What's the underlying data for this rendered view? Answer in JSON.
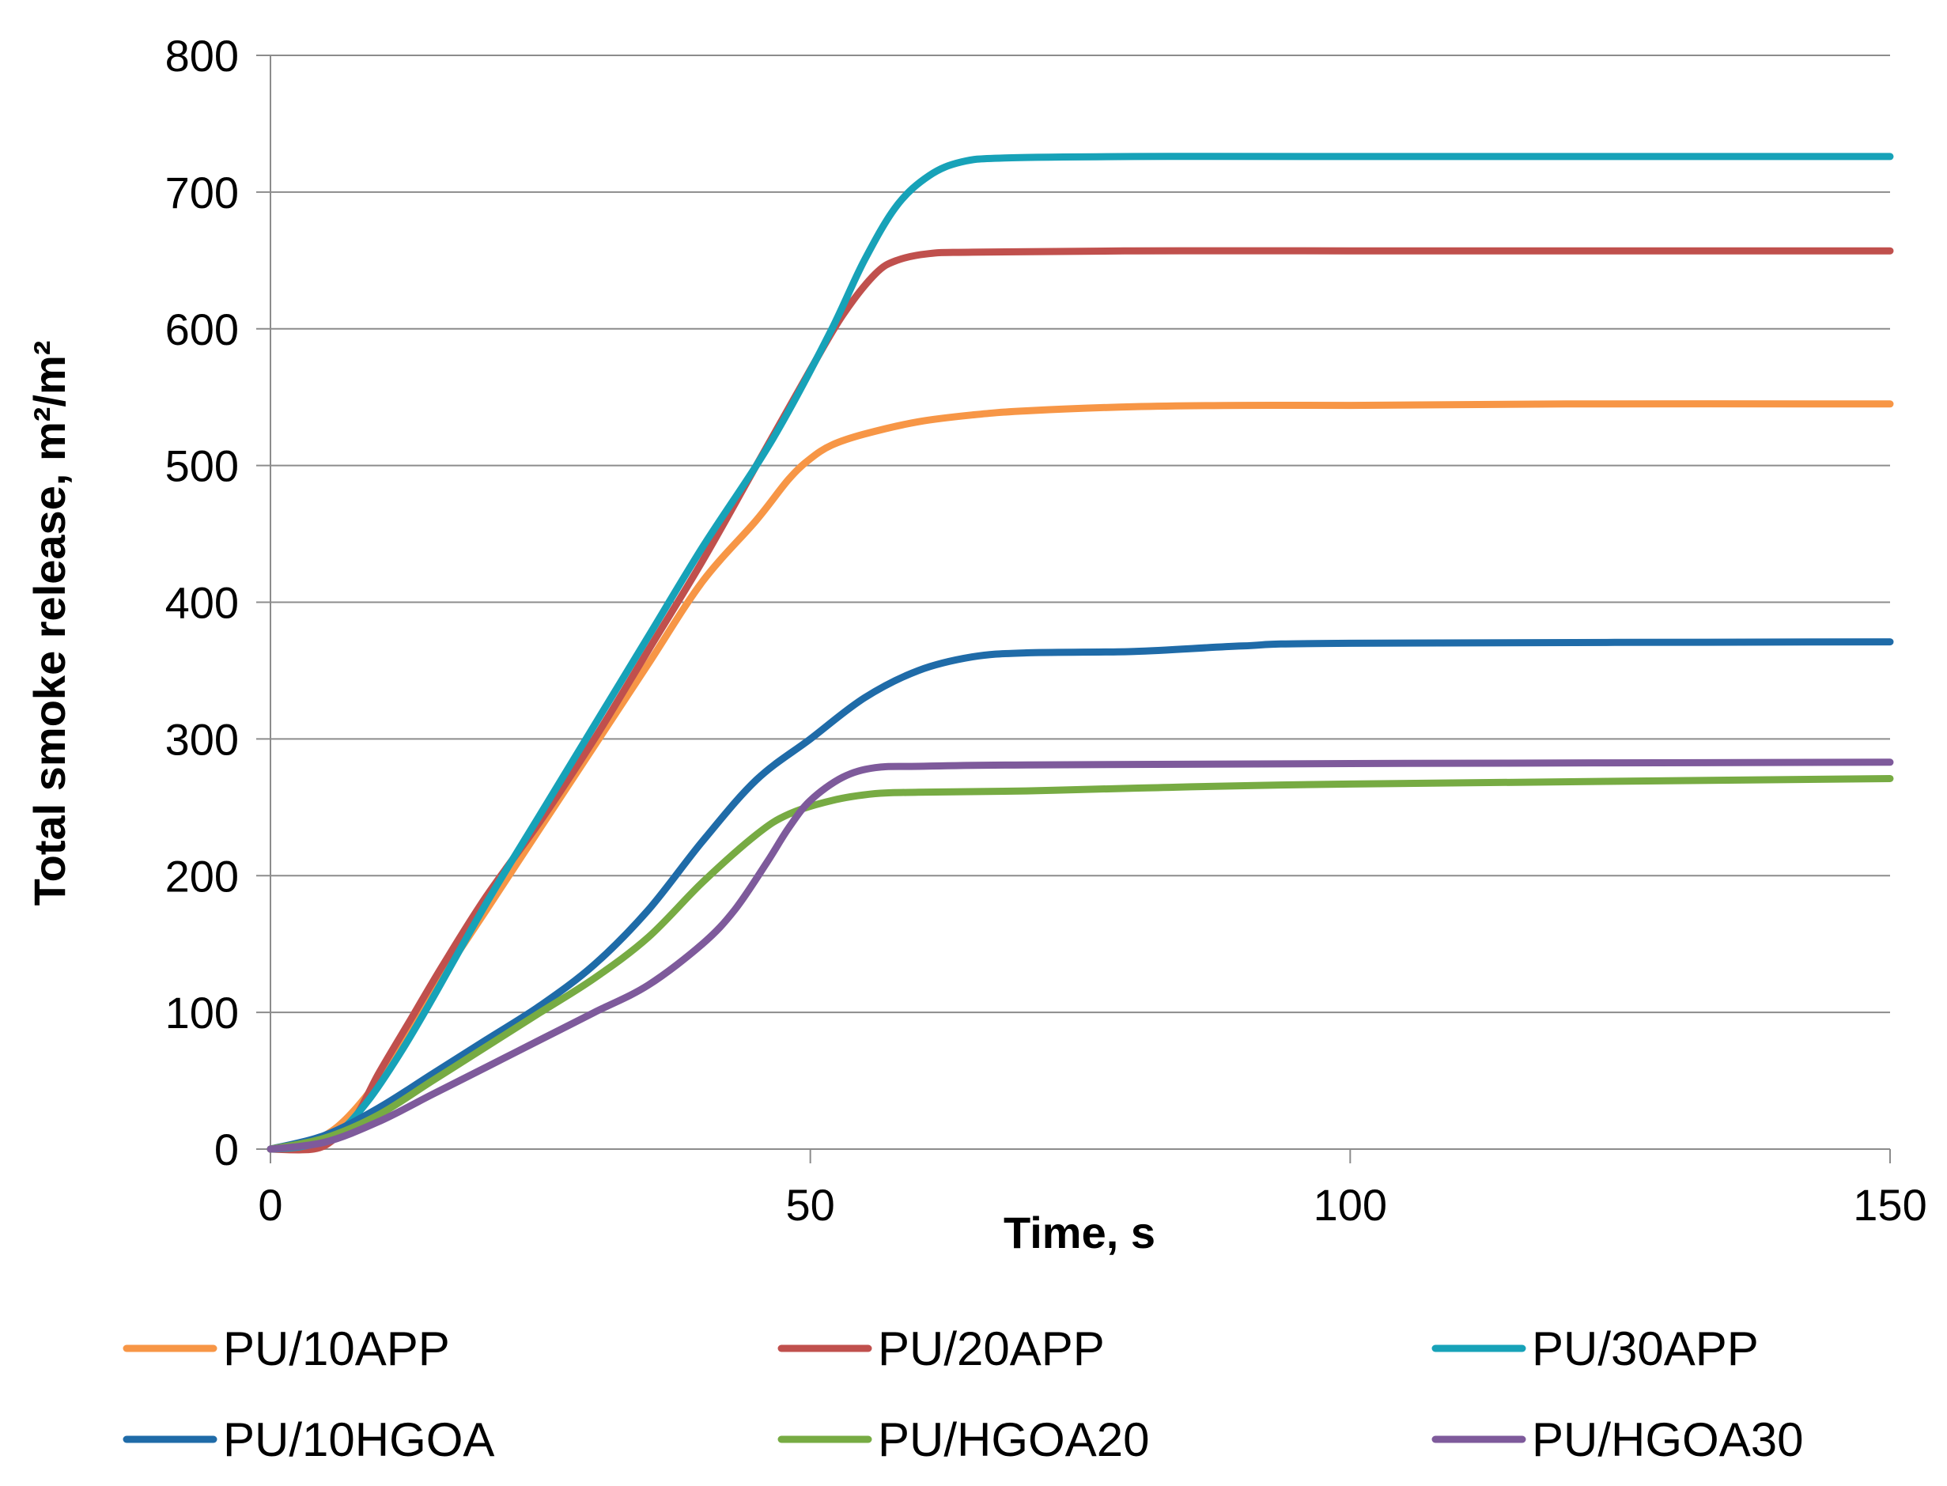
{
  "chart_data": {
    "type": "line",
    "title": "",
    "xlabel": "Time, s",
    "ylabel": "Total smoke release, m²/m²",
    "xlim": [
      0,
      150
    ],
    "ylim": [
      0,
      800
    ],
    "xticks": [
      "0",
      "50",
      "100",
      "150"
    ],
    "yticks": [
      "0",
      "100",
      "200",
      "300",
      "400",
      "500",
      "600",
      "700",
      "800"
    ],
    "grid": "horizontal",
    "legend": "bottom",
    "series": [
      {
        "name": "PU/10APP",
        "color": "#F79646",
        "points": [
          [
            0,
            0
          ],
          [
            3,
            3
          ],
          [
            6,
            15
          ],
          [
            9,
            40
          ],
          [
            12,
            75
          ],
          [
            15,
            115
          ],
          [
            20,
            175
          ],
          [
            25,
            235
          ],
          [
            30,
            295
          ],
          [
            35,
            355
          ],
          [
            40,
            415
          ],
          [
            45,
            460
          ],
          [
            48,
            490
          ],
          [
            50,
            505
          ],
          [
            52,
            515
          ],
          [
            55,
            523
          ],
          [
            60,
            532
          ],
          [
            65,
            537
          ],
          [
            70,
            540
          ],
          [
            80,
            543
          ],
          [
            90,
            544
          ],
          [
            100,
            544
          ],
          [
            120,
            545
          ],
          [
            150,
            545
          ]
        ]
      },
      {
        "name": "PU/20APP",
        "color": "#C0504D",
        "points": [
          [
            0,
            0
          ],
          [
            4,
            0
          ],
          [
            6,
            8
          ],
          [
            8,
            25
          ],
          [
            10,
            55
          ],
          [
            13,
            95
          ],
          [
            16,
            135
          ],
          [
            20,
            185
          ],
          [
            25,
            240
          ],
          [
            30,
            300
          ],
          [
            35,
            365
          ],
          [
            40,
            430
          ],
          [
            45,
            500
          ],
          [
            50,
            570
          ],
          [
            53,
            610
          ],
          [
            56,
            640
          ],
          [
            58,
            650
          ],
          [
            61,
            655
          ],
          [
            65,
            656
          ],
          [
            80,
            657
          ],
          [
            100,
            657
          ],
          [
            150,
            657
          ]
        ]
      },
      {
        "name": "PU/30APP",
        "color": "#17A2B8",
        "points": [
          [
            0,
            0
          ],
          [
            3,
            2
          ],
          [
            6,
            10
          ],
          [
            9,
            35
          ],
          [
            12,
            70
          ],
          [
            15,
            110
          ],
          [
            20,
            180
          ],
          [
            25,
            245
          ],
          [
            30,
            310
          ],
          [
            35,
            375
          ],
          [
            40,
            440
          ],
          [
            45,
            500
          ],
          [
            48,
            540
          ],
          [
            52,
            600
          ],
          [
            55,
            650
          ],
          [
            58,
            690
          ],
          [
            61,
            712
          ],
          [
            64,
            722
          ],
          [
            68,
            725
          ],
          [
            80,
            726
          ],
          [
            100,
            726
          ],
          [
            150,
            726
          ]
        ]
      },
      {
        "name": "PU/10HGOA",
        "color": "#1F6BA8",
        "points": [
          [
            0,
            0
          ],
          [
            5,
            10
          ],
          [
            10,
            30
          ],
          [
            15,
            55
          ],
          [
            20,
            80
          ],
          [
            25,
            105
          ],
          [
            30,
            135
          ],
          [
            35,
            175
          ],
          [
            40,
            225
          ],
          [
            45,
            270
          ],
          [
            50,
            300
          ],
          [
            55,
            330
          ],
          [
            60,
            350
          ],
          [
            65,
            360
          ],
          [
            70,
            363
          ],
          [
            80,
            364
          ],
          [
            90,
            368
          ],
          [
            100,
            370
          ],
          [
            150,
            371
          ]
        ]
      },
      {
        "name": "PU/HGOA20",
        "color": "#77AB43",
        "points": [
          [
            0,
            0
          ],
          [
            5,
            8
          ],
          [
            10,
            25
          ],
          [
            15,
            50
          ],
          [
            20,
            75
          ],
          [
            25,
            100
          ],
          [
            30,
            125
          ],
          [
            35,
            155
          ],
          [
            40,
            195
          ],
          [
            45,
            230
          ],
          [
            48,
            245
          ],
          [
            52,
            255
          ],
          [
            56,
            260
          ],
          [
            60,
            261
          ],
          [
            70,
            262
          ],
          [
            80,
            264
          ],
          [
            100,
            267
          ],
          [
            150,
            271
          ]
        ]
      },
      {
        "name": "PU/HGOA30",
        "color": "#7E5A9B",
        "points": [
          [
            0,
            0
          ],
          [
            5,
            5
          ],
          [
            10,
            20
          ],
          [
            15,
            40
          ],
          [
            20,
            60
          ],
          [
            25,
            80
          ],
          [
            30,
            100
          ],
          [
            35,
            120
          ],
          [
            40,
            150
          ],
          [
            43,
            175
          ],
          [
            46,
            210
          ],
          [
            48,
            235
          ],
          [
            50,
            255
          ],
          [
            53,
            272
          ],
          [
            56,
            279
          ],
          [
            60,
            280
          ],
          [
            70,
            281
          ],
          [
            100,
            282
          ],
          [
            150,
            283
          ]
        ]
      }
    ]
  }
}
